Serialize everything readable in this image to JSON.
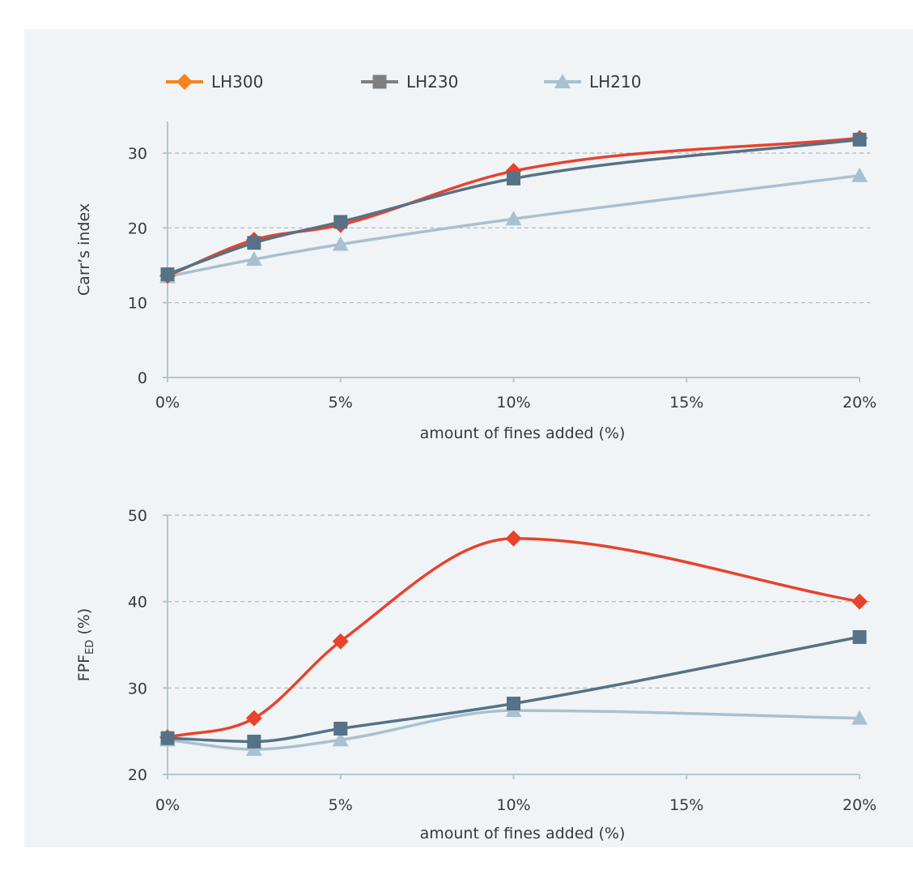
{
  "legend": [
    {
      "name": "LH300",
      "color": "#e8422c",
      "marker": "diamond",
      "legend_color": "#f5841f"
    },
    {
      "name": "LH230",
      "color": "#557286",
      "marker": "square",
      "legend_color": "#7f7f7f"
    },
    {
      "name": "LH210",
      "color": "#a9c0cf",
      "marker": "triangle",
      "legend_color": "#a9c0cf"
    }
  ],
  "chart_data": [
    {
      "type": "line",
      "title": "",
      "xlabel": "amount of fines added (%)",
      "ylabel": "Carr’s index",
      "xlim": [
        0,
        20
      ],
      "ylim": [
        0,
        35
      ],
      "x_ticks": [
        0,
        5,
        10,
        15,
        20
      ],
      "x_tick_labels": [
        "0%",
        "5%",
        "10%",
        "15%",
        "20%"
      ],
      "y_ticks": [
        0,
        10,
        20,
        30
      ],
      "y_tick_labels": [
        "0",
        "10",
        "20",
        "30"
      ],
      "grid": "horizontal dashed",
      "legend": "top",
      "series": [
        {
          "name": "LH300",
          "x": [
            0,
            2.5,
            5,
            10,
            20
          ],
          "y": [
            13.6,
            18.4,
            20.4,
            27.6,
            32.0
          ]
        },
        {
          "name": "LH230",
          "x": [
            0,
            2.5,
            5,
            10,
            20
          ],
          "y": [
            13.8,
            18.0,
            20.8,
            26.6,
            31.8
          ]
        },
        {
          "name": "LH210",
          "x": [
            0,
            2.5,
            5,
            10,
            20
          ],
          "y": [
            13.5,
            15.8,
            17.8,
            21.2,
            27.0
          ]
        }
      ]
    },
    {
      "type": "line",
      "title": "",
      "xlabel": "amount of fines added (%)",
      "ylabel": "FPF",
      "ylabel_subscript": "ED",
      "ylabel_suffix": " (%)",
      "xlim": [
        0,
        20
      ],
      "ylim": [
        20,
        50
      ],
      "x_ticks": [
        0,
        5,
        10,
        15,
        20
      ],
      "x_tick_labels": [
        "0%",
        "5%",
        "10%",
        "15%",
        "20%"
      ],
      "y_ticks": [
        20,
        30,
        40,
        50
      ],
      "y_tick_labels": [
        "20",
        "30",
        "40",
        "50"
      ],
      "grid": "horizontal dashed",
      "series": [
        {
          "name": "LH300",
          "x": [
            0,
            2.5,
            5,
            10,
            20
          ],
          "y": [
            24.3,
            26.5,
            35.4,
            47.3,
            40.0
          ]
        },
        {
          "name": "LH230",
          "x": [
            0,
            2.5,
            5,
            10,
            20
          ],
          "y": [
            24.2,
            23.8,
            25.3,
            28.2,
            35.9
          ]
        },
        {
          "name": "LH210",
          "x": [
            0,
            2.5,
            5,
            10,
            20
          ],
          "y": [
            24.0,
            22.9,
            24.0,
            27.4,
            26.5
          ]
        }
      ]
    }
  ]
}
